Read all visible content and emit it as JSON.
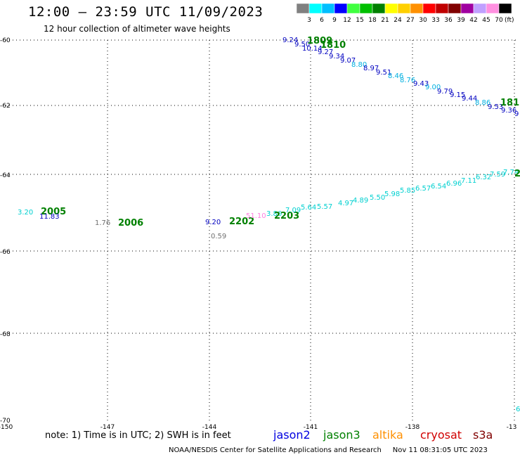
{
  "header": {
    "title": "12:00 — 23:59 UTC 11/09/2023",
    "subtitle": "12 hour collection of altimeter wave heights"
  },
  "colorbar": {
    "unit": "(ft)",
    "items": [
      {
        "label": "3",
        "color": "#808080"
      },
      {
        "label": "6",
        "color": "#00ffff"
      },
      {
        "label": "9",
        "color": "#00bfff"
      },
      {
        "label": "12",
        "color": "#0000ff"
      },
      {
        "label": "15",
        "color": "#40ff40"
      },
      {
        "label": "18",
        "color": "#00c000"
      },
      {
        "label": "21",
        "color": "#008000"
      },
      {
        "label": "24",
        "color": "#ffff00"
      },
      {
        "label": "27",
        "color": "#ffd000"
      },
      {
        "label": "30",
        "color": "#ff9000"
      },
      {
        "label": "33",
        "color": "#ff0000"
      },
      {
        "label": "36",
        "color": "#c00000"
      },
      {
        "label": "39",
        "color": "#800000"
      },
      {
        "label": "42",
        "color": "#a000a0"
      },
      {
        "label": "45",
        "color": "#c0a0ff"
      },
      {
        "label": "70",
        "color": "#ff90e0"
      },
      {
        "label": "",
        "color": "#000000"
      }
    ]
  },
  "map": {
    "lon_labels": [
      "-150",
      "-147",
      "-144",
      "-141",
      "-138",
      "-13"
    ],
    "lat_labels": [
      "-60",
      "-62",
      "-64",
      "-66",
      "-68",
      "-70"
    ]
  },
  "tracks": {
    "labels": [
      {
        "text": "9.24",
        "color": "#0000c0",
        "kind": "value"
      },
      {
        "text": "9.50",
        "color": "#0000c0",
        "kind": "value"
      },
      {
        "text": "10.14",
        "color": "#0000c0",
        "kind": "value"
      },
      {
        "text": "9.27",
        "color": "#0000c0",
        "kind": "value"
      },
      {
        "text": "9.34",
        "color": "#0000c0",
        "kind": "value"
      },
      {
        "text": "9.07",
        "color": "#0000c0",
        "kind": "value"
      },
      {
        "text": "8.80",
        "color": "#00b0e0",
        "kind": "value"
      },
      {
        "text": "8.97",
        "color": "#0000c0",
        "kind": "value"
      },
      {
        "text": "9.51",
        "color": "#0000c0",
        "kind": "value"
      },
      {
        "text": "8.46",
        "color": "#00b0e0",
        "kind": "value"
      },
      {
        "text": "8.76",
        "color": "#00b0e0",
        "kind": "value"
      },
      {
        "text": "9.43",
        "color": "#0000c0",
        "kind": "value"
      },
      {
        "text": "9.00",
        "color": "#00b0e0",
        "kind": "value"
      },
      {
        "text": "9.79",
        "color": "#0000c0",
        "kind": "value"
      },
      {
        "text": "9.15",
        "color": "#0000c0",
        "kind": "value"
      },
      {
        "text": "9.44",
        "color": "#0000c0",
        "kind": "value"
      },
      {
        "text": "8.86",
        "color": "#00b0e0",
        "kind": "value"
      },
      {
        "text": "9.53",
        "color": "#0000c0",
        "kind": "value"
      },
      {
        "text": "9.36",
        "color": "#0000c0",
        "kind": "value"
      },
      {
        "text": "9",
        "color": "#0000c0",
        "kind": "value"
      },
      {
        "text": "1809",
        "color": "#008000",
        "kind": "time"
      },
      {
        "text": "1810",
        "color": "#008000",
        "kind": "time"
      },
      {
        "text": "181",
        "color": "#008000",
        "kind": "time"
      },
      {
        "text": "3.20",
        "color": "#00d0d0",
        "kind": "value"
      },
      {
        "text": "2005",
        "color": "#008000",
        "kind": "time"
      },
      {
        "text": "11.83",
        "color": "#0000c0",
        "kind": "value"
      },
      {
        "text": "1.76",
        "color": "#707070",
        "kind": "value"
      },
      {
        "text": "2006",
        "color": "#008000",
        "kind": "time"
      },
      {
        "text": "9.20",
        "color": "#0000c0",
        "kind": "value"
      },
      {
        "text": "2202",
        "color": "#008000",
        "kind": "time"
      },
      {
        "text": "0.59",
        "color": "#707070",
        "kind": "value"
      },
      {
        "text": "51.10",
        "color": "#ff80e0",
        "kind": "value"
      },
      {
        "text": "3.86",
        "color": "#00d0d0",
        "kind": "value"
      },
      {
        "text": "2203",
        "color": "#008000",
        "kind": "time"
      },
      {
        "text": "7.09",
        "color": "#00d0d0",
        "kind": "value"
      },
      {
        "text": "5.64",
        "color": "#00d0d0",
        "kind": "value"
      },
      {
        "text": "5.57",
        "color": "#00d0d0",
        "kind": "value"
      },
      {
        "text": "4.97",
        "color": "#00d0d0",
        "kind": "value"
      },
      {
        "text": "4.89",
        "color": "#00d0d0",
        "kind": "value"
      },
      {
        "text": "5.50",
        "color": "#00d0d0",
        "kind": "value"
      },
      {
        "text": "5.98",
        "color": "#00d0d0",
        "kind": "value"
      },
      {
        "text": "5.85",
        "color": "#00d0d0",
        "kind": "value"
      },
      {
        "text": "6.57",
        "color": "#00d0d0",
        "kind": "value"
      },
      {
        "text": "6.54",
        "color": "#00d0d0",
        "kind": "value"
      },
      {
        "text": "6.96",
        "color": "#00d0d0",
        "kind": "value"
      },
      {
        "text": "7.11",
        "color": "#00d0d0",
        "kind": "value"
      },
      {
        "text": "6.32",
        "color": "#00d0d0",
        "kind": "value"
      },
      {
        "text": "7.59",
        "color": "#00d0d0",
        "kind": "value"
      },
      {
        "text": "7.74",
        "color": "#00d0d0",
        "kind": "value"
      },
      {
        "text": "2",
        "color": "#008000",
        "kind": "time"
      },
      {
        "text": "6",
        "color": "#00d0d0",
        "kind": "value"
      }
    ]
  },
  "footer": {
    "note": "note: 1) Time is in UTC; 2) SWH is in feet",
    "credit": "NOAA/NESDIS Center for Satellite Applications and Research",
    "timestamp": "Nov 11 08:31:05 UTC 2023",
    "satellites": [
      {
        "name": "jason2",
        "color": "#0000e0"
      },
      {
        "name": "jason3",
        "color": "#008000"
      },
      {
        "name": "altika",
        "color": "#ff9000"
      },
      {
        "name": "cryosat",
        "color": "#d00000"
      },
      {
        "name": "s3a",
        "color": "#800000"
      }
    ]
  }
}
